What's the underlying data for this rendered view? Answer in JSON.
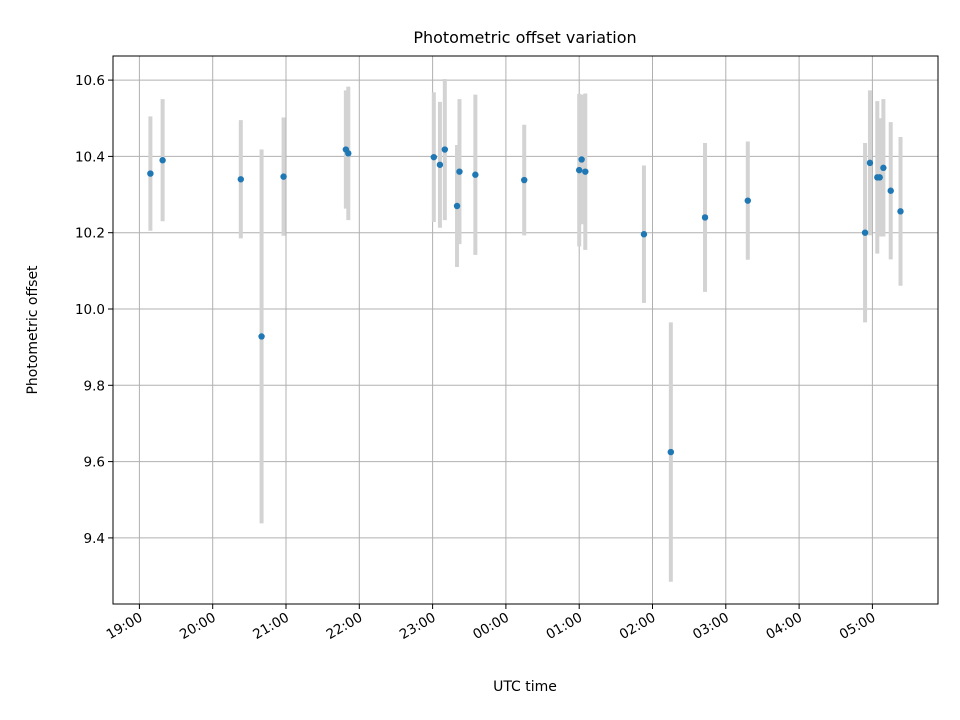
{
  "chart_data": {
    "type": "scatter",
    "title": "Photometric offset variation",
    "xlabel": "UTC time",
    "ylabel": "Photometric offset",
    "x_ticks": [
      "19:00",
      "20:00",
      "21:00",
      "22:00",
      "23:00",
      "00:00",
      "01:00",
      "02:00",
      "03:00",
      "04:00",
      "05:00"
    ],
    "y_ticks": [
      "9.4",
      "9.6",
      "9.8",
      "10.0",
      "10.2",
      "10.4",
      "10.6"
    ],
    "ylim": [
      9.225,
      10.66
    ],
    "grid": true,
    "colors": {
      "marker": "#1f77b4",
      "errorbar": "#d3d3d3",
      "grid": "#b0b0b0"
    },
    "points": [
      {
        "t": "19:09",
        "value": 10.355,
        "err": 0.15
      },
      {
        "t": "19:19",
        "value": 10.39,
        "err": 0.16
      },
      {
        "t": "20:23",
        "value": 10.34,
        "err": 0.155
      },
      {
        "t": "20:40",
        "value": 9.928,
        "err": 0.49
      },
      {
        "t": "20:58",
        "value": 10.347,
        "err": 0.155
      },
      {
        "t": "21:49",
        "value": 10.418,
        "err": 0.155
      },
      {
        "t": "21:51",
        "value": 10.408,
        "err": 0.175
      },
      {
        "t": "23:01",
        "value": 10.398,
        "err": 0.17
      },
      {
        "t": "23:06",
        "value": 10.378,
        "err": 0.165
      },
      {
        "t": "23:10",
        "value": 10.418,
        "err": 0.185
      },
      {
        "t": "23:20",
        "value": 10.27,
        "err": 0.16
      },
      {
        "t": "23:22",
        "value": 10.36,
        "err": 0.19
      },
      {
        "t": "23:35",
        "value": 10.352,
        "err": 0.21
      },
      {
        "t": "00:15",
        "value": 10.338,
        "err": 0.145
      },
      {
        "t": "01:00",
        "value": 10.364,
        "err": 0.2
      },
      {
        "t": "01:02",
        "value": 10.392,
        "err": 0.17
      },
      {
        "t": "01:05",
        "value": 10.36,
        "err": 0.205
      },
      {
        "t": "01:53",
        "value": 10.196,
        "err": 0.18
      },
      {
        "t": "02:15",
        "value": 9.625,
        "err": 0.34
      },
      {
        "t": "02:43",
        "value": 10.24,
        "err": 0.195
      },
      {
        "t": "03:18",
        "value": 10.284,
        "err": 0.155
      },
      {
        "t": "04:54",
        "value": 10.2,
        "err": 0.235
      },
      {
        "t": "04:58",
        "value": 10.383,
        "err": 0.19
      },
      {
        "t": "05:04",
        "value": 10.345,
        "err": 0.2
      },
      {
        "t": "05:06",
        "value": 10.345,
        "err": 0.155
      },
      {
        "t": "05:09",
        "value": 10.37,
        "err": 0.18
      },
      {
        "t": "05:15",
        "value": 10.31,
        "err": 0.18
      },
      {
        "t": "05:23",
        "value": 10.256,
        "err": 0.195
      }
    ]
  }
}
